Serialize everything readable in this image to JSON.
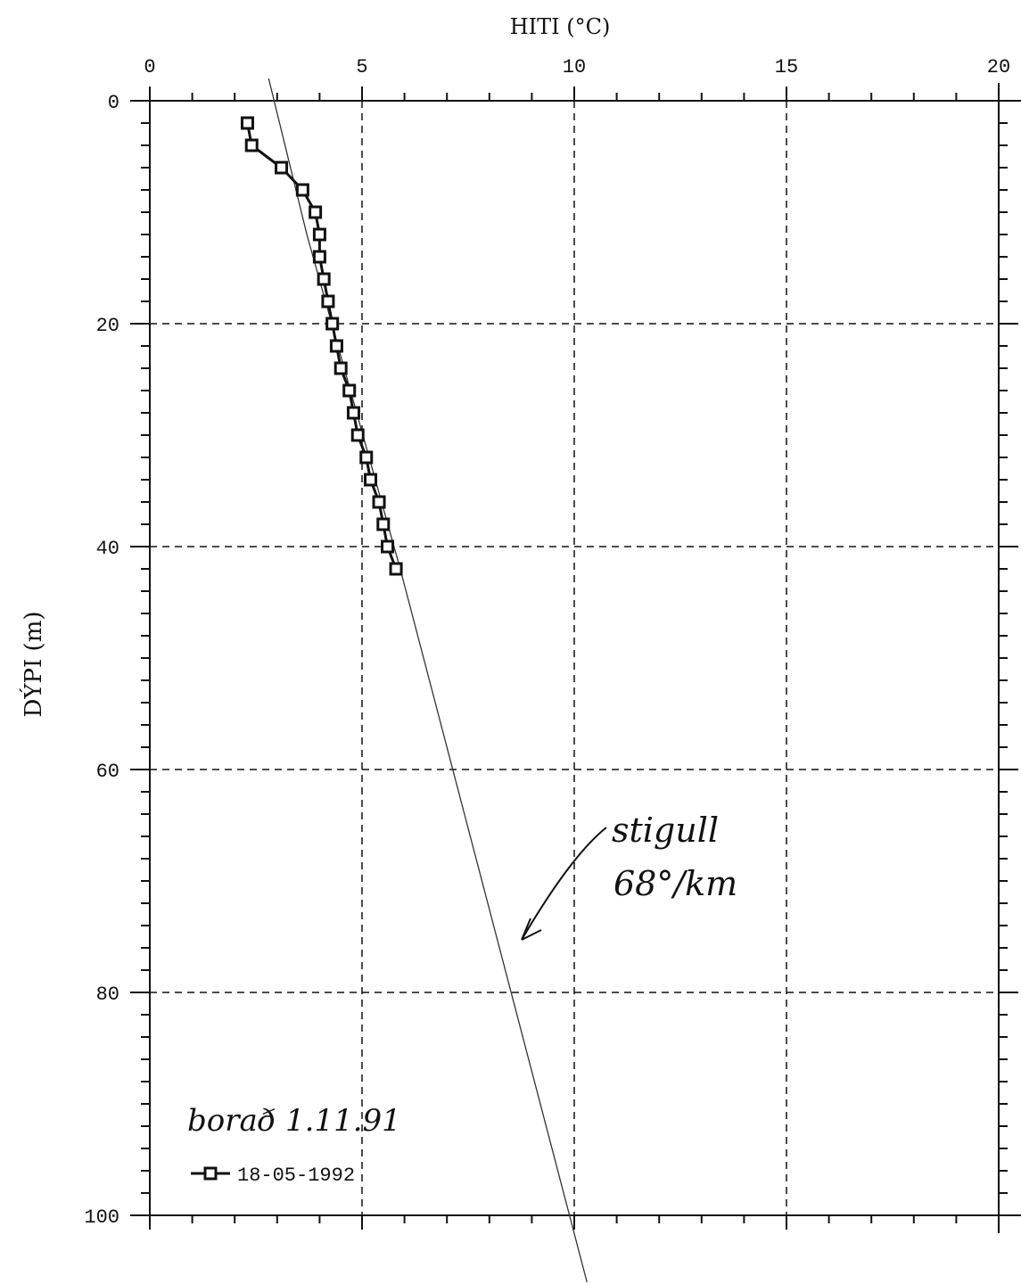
{
  "chart_data": {
    "type": "line",
    "title": "",
    "xlabel": "HITI (°C)",
    "ylabel": "DÝPI (m)",
    "xlim": [
      0,
      20
    ],
    "ylim": [
      0,
      100
    ],
    "y_inverted": true,
    "x_axis_position": "top",
    "xticks": [
      0,
      5,
      10,
      15,
      20
    ],
    "yticks": [
      0,
      20,
      40,
      60,
      80,
      100
    ],
    "grid": true,
    "legend_position": "bottom-left",
    "series": [
      {
        "name": "18-05-1992",
        "marker": "square",
        "color": "#111111",
        "x": [
          2.3,
          2.4,
          3.1,
          3.6,
          3.9,
          4.0,
          4.0,
          4.1,
          4.2,
          4.3,
          4.4,
          4.5,
          4.7,
          4.8,
          4.9,
          5.1,
          5.2,
          5.4,
          5.5,
          5.6,
          5.8
        ],
        "y": [
          2,
          4,
          6,
          8,
          10,
          12,
          14,
          16,
          18,
          20,
          22,
          24,
          26,
          28,
          30,
          32,
          34,
          36,
          38,
          40,
          42
        ]
      }
    ],
    "trend_line": {
      "x": [
        2.8,
        3.7,
        5.9,
        10.3
      ],
      "y": [
        -2,
        12,
        42,
        106
      ]
    },
    "annotations": [
      {
        "text": "stigull",
        "x": 11.0,
        "y": 72.5
      },
      {
        "text": "68°/km",
        "x": 10.9,
        "y": 76.3
      },
      {
        "text": "borað 1.11.91",
        "x": 0.9,
        "y": 91.5
      }
    ]
  }
}
